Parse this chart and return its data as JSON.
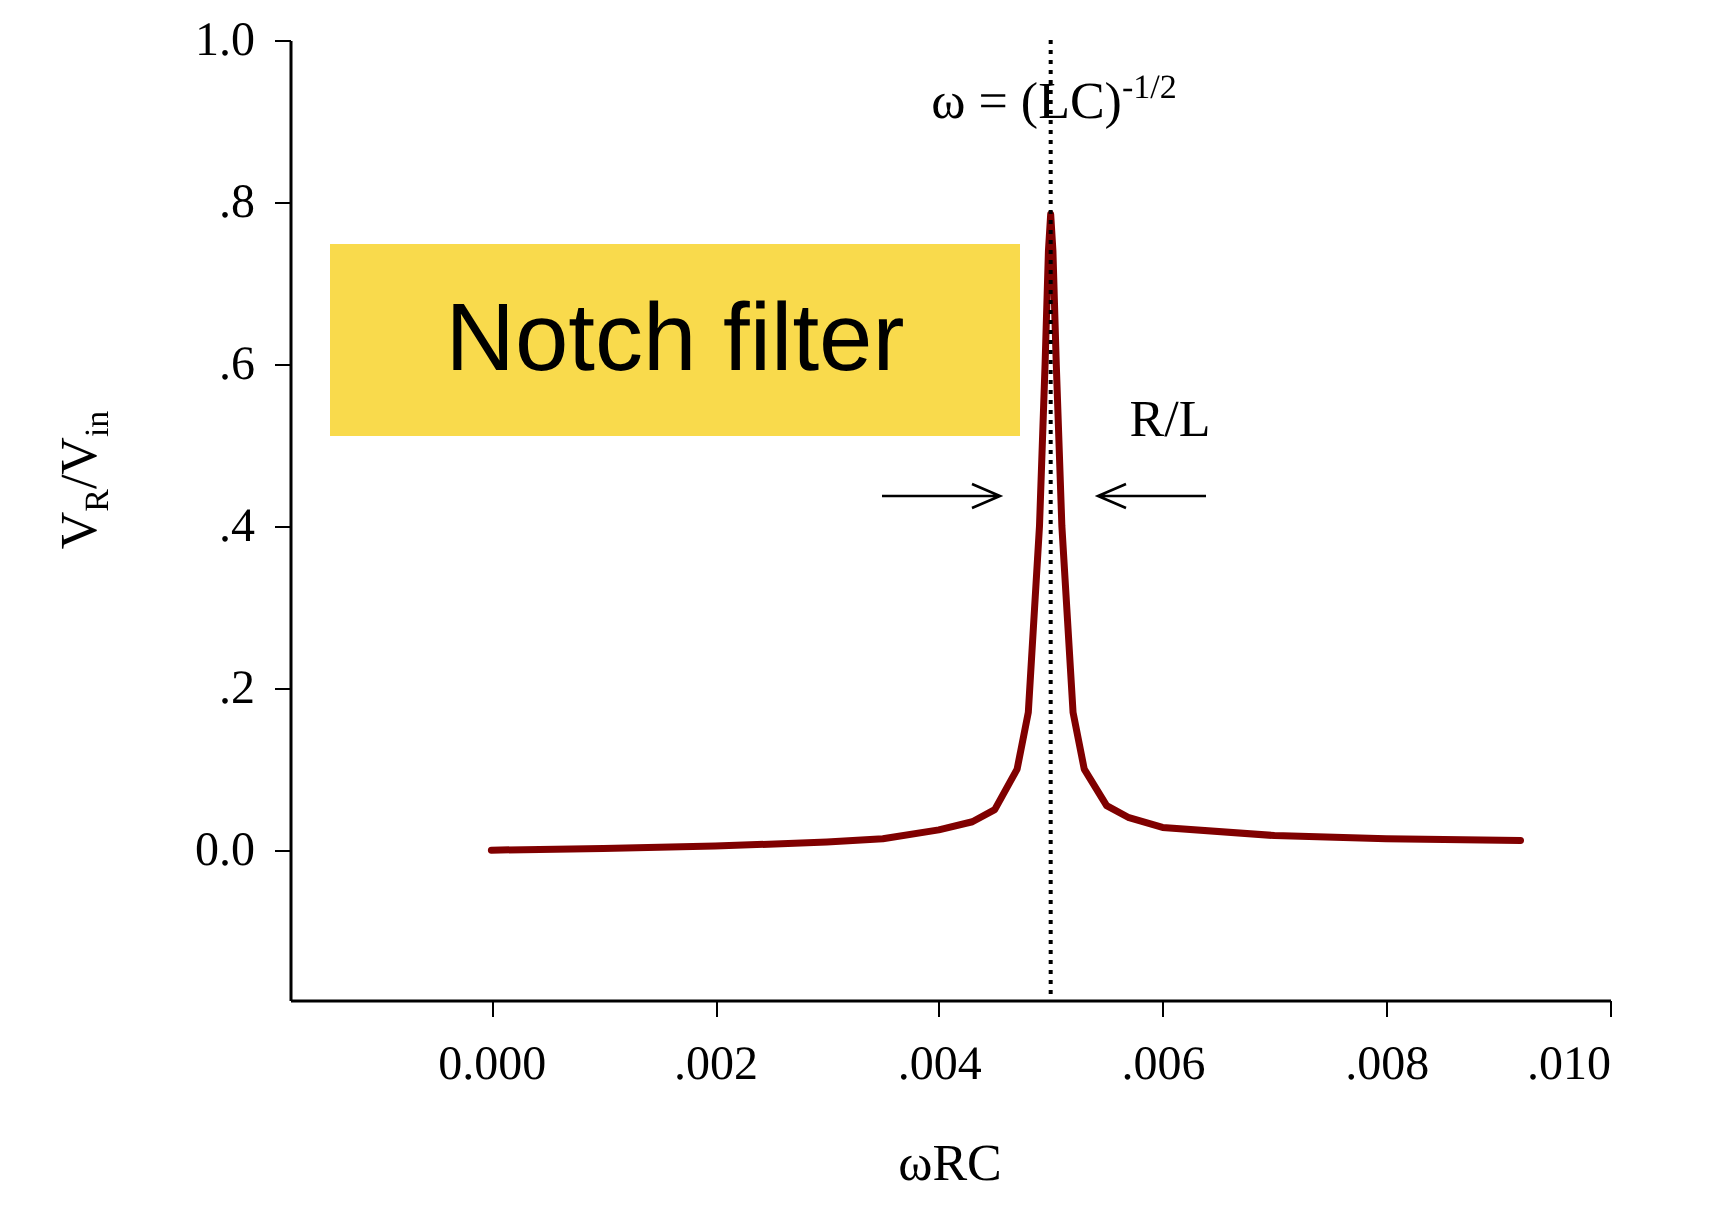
{
  "chart_data": {
    "type": "line",
    "xlabel": "ωRC",
    "ylabel": "V$_{R}$/V$_{in}$",
    "x": [
      0,
      0.001,
      0.002,
      0.003,
      0.0035,
      0.004,
      0.0043,
      0.0045,
      0.0047,
      0.0048,
      0.0049,
      0.00495,
      0.00498,
      0.005,
      0.00502,
      0.00505,
      0.0051,
      0.0052,
      0.0053,
      0.0055,
      0.0057,
      0.006,
      0.007,
      0.008,
      0.0092
    ],
    "series": [
      {
        "color": "#800000",
        "values": [
          0,
          0.002,
          0.005,
          0.01,
          0.014,
          0.025,
          0.035,
          0.05,
          0.1,
          0.17,
          0.4,
          0.6,
          0.74,
          0.785,
          0.74,
          0.6,
          0.4,
          0.17,
          0.1,
          0.055,
          0.04,
          0.028,
          0.018,
          0.014,
          0.012
        ]
      }
    ],
    "xlim": [
      -0.0018,
      0.01
    ],
    "ylim": [
      -0.185,
      1.0
    ],
    "xticks": [
      {
        "value": 0,
        "label": "0.000"
      },
      {
        "value": 0.002,
        "label": ".002"
      },
      {
        "value": 0.004,
        "label": ".004"
      },
      {
        "value": 0.006,
        "label": ".006"
      },
      {
        "value": 0.008,
        "label": ".008"
      },
      {
        "value": 0.01,
        "label": ".010"
      }
    ],
    "yticks": [
      {
        "value": 0,
        "label": "0.0"
      },
      {
        "value": 0.2,
        "label": ".2"
      },
      {
        "value": 0.4,
        "label": ".4"
      },
      {
        "value": 0.6,
        "label": ".6"
      },
      {
        "value": 0.8,
        "label": ".8"
      },
      {
        "value": 1,
        "label": "1.0"
      }
    ],
    "ref_lines": [
      {
        "axis": "x",
        "value": 0.005,
        "line_style": "dotted",
        "color": "#000000"
      }
    ],
    "annotations": [
      "ω = (LC)$^{-1/2}$",
      "R/L",
      "Notch filter"
    ],
    "grid": false,
    "marker": "none",
    "line_style": "solid"
  }
}
